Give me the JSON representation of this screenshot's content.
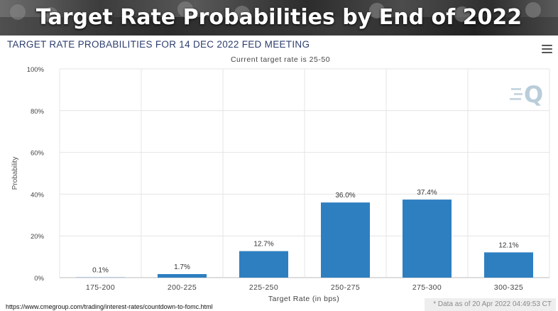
{
  "banner": {
    "title": "Target Rate Probabilities by End of 2022"
  },
  "chart_data": {
    "type": "bar",
    "title": "TARGET RATE PROBABILITIES FOR 14 DEC 2022 FED MEETING",
    "subtitle": "Current target rate is 25-50",
    "xlabel": "Target Rate (in bps)",
    "ylabel": "Probability",
    "categories": [
      "175-200",
      "200-225",
      "225-250",
      "250-275",
      "275-300",
      "300-325"
    ],
    "values": [
      0.1,
      1.7,
      12.7,
      36.0,
      37.4,
      12.1
    ],
    "data_labels": [
      "0.1%",
      "1.7%",
      "12.7%",
      "36.0%",
      "37.4%",
      "12.1%"
    ],
    "ylim": [
      0,
      100
    ],
    "yticks": [
      0,
      20,
      40,
      60,
      80,
      100
    ],
    "ytick_labels": [
      "0%",
      "20%",
      "40%",
      "60%",
      "80%",
      "100%"
    ],
    "grid": true,
    "bar_color": "#2e7fc0",
    "title_color": "#2d3e6e"
  },
  "footer": {
    "source_url": "https://www.cmegroup.com/trading/interest-rates/countdown-to-fomc.html",
    "as_of": "* Data as of 20 Apr 2022 04:49:53 CT"
  },
  "icons": {
    "menu": "hamburger-menu-icon",
    "logo": "quikstrike-q-logo-icon"
  }
}
